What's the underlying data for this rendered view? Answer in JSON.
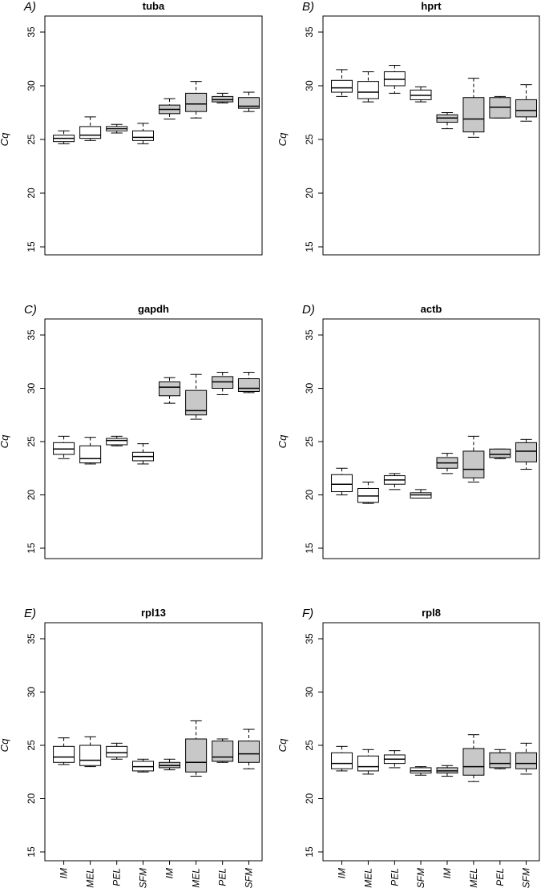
{
  "chart_data": [
    {
      "type": "boxplot",
      "panel_label": "A)",
      "title": "tuba",
      "ylabel": "Cq",
      "ylim": [
        15,
        35
      ],
      "yticks": [
        15,
        20,
        25,
        30,
        35
      ],
      "categories": [
        "IM",
        "MEL",
        "PEL",
        "SFM",
        "IM",
        "MEL",
        "PEL",
        "SFM"
      ],
      "fill": [
        "#ffffff",
        "#ffffff",
        "#ffffff",
        "#ffffff",
        "#c8c8c8",
        "#c8c8c8",
        "#c8c8c8",
        "#c8c8c8"
      ],
      "boxes": [
        {
          "min": 24.6,
          "q1": 24.8,
          "median": 25.1,
          "q3": 25.4,
          "max": 25.8
        },
        {
          "min": 24.9,
          "q1": 25.1,
          "median": 25.4,
          "q3": 26.2,
          "max": 27.1
        },
        {
          "min": 25.6,
          "q1": 25.8,
          "median": 26.0,
          "q3": 26.2,
          "max": 26.4
        },
        {
          "min": 24.6,
          "q1": 24.9,
          "median": 25.2,
          "q3": 25.8,
          "max": 26.5
        },
        {
          "min": 26.9,
          "q1": 27.4,
          "median": 27.8,
          "q3": 28.2,
          "max": 28.8
        },
        {
          "min": 27.0,
          "q1": 27.6,
          "median": 28.3,
          "q3": 29.3,
          "max": 30.4
        },
        {
          "min": 28.4,
          "q1": 28.5,
          "median": 28.7,
          "q3": 29.0,
          "max": 29.3
        },
        {
          "min": 27.6,
          "q1": 27.9,
          "median": 28.1,
          "q3": 28.9,
          "max": 29.4
        }
      ]
    },
    {
      "type": "boxplot",
      "panel_label": "B)",
      "title": "hprt",
      "ylabel": "Cq",
      "ylim": [
        15,
        35
      ],
      "yticks": [
        15,
        20,
        25,
        30,
        35
      ],
      "categories": [
        "IM",
        "MEL",
        "PEL",
        "SFM",
        "IM",
        "MEL",
        "PEL",
        "SFM"
      ],
      "fill": [
        "#ffffff",
        "#ffffff",
        "#ffffff",
        "#ffffff",
        "#c8c8c8",
        "#c8c8c8",
        "#c8c8c8",
        "#c8c8c8"
      ],
      "boxes": [
        {
          "min": 29.0,
          "q1": 29.4,
          "median": 29.8,
          "q3": 30.5,
          "max": 31.5
        },
        {
          "min": 28.5,
          "q1": 28.8,
          "median": 29.4,
          "q3": 30.4,
          "max": 31.3
        },
        {
          "min": 29.3,
          "q1": 30.0,
          "median": 30.6,
          "q3": 31.3,
          "max": 31.9
        },
        {
          "min": 28.5,
          "q1": 28.7,
          "median": 29.1,
          "q3": 29.6,
          "max": 29.9
        },
        {
          "min": 26.0,
          "q1": 26.6,
          "median": 27.0,
          "q3": 27.3,
          "max": 27.5
        },
        {
          "min": 25.2,
          "q1": 25.7,
          "median": 26.9,
          "q3": 28.9,
          "max": 30.7
        },
        {
          "min": 27.0,
          "q1": 27.0,
          "median": 28.0,
          "q3": 28.9,
          "max": 29.0
        },
        {
          "min": 26.7,
          "q1": 27.1,
          "median": 27.7,
          "q3": 28.7,
          "max": 30.1
        }
      ]
    },
    {
      "type": "boxplot",
      "panel_label": "C)",
      "title": "gapdh",
      "ylabel": "Cq",
      "ylim": [
        15,
        35
      ],
      "yticks": [
        15,
        20,
        25,
        30,
        35
      ],
      "categories": [
        "IM",
        "MEL",
        "PEL",
        "SFM",
        "IM",
        "MEL",
        "PEL",
        "SFM"
      ],
      "fill": [
        "#ffffff",
        "#ffffff",
        "#ffffff",
        "#ffffff",
        "#c8c8c8",
        "#c8c8c8",
        "#c8c8c8",
        "#c8c8c8"
      ],
      "boxes": [
        {
          "min": 23.4,
          "q1": 23.8,
          "median": 24.3,
          "q3": 24.9,
          "max": 25.5
        },
        {
          "min": 22.9,
          "q1": 23.0,
          "median": 23.4,
          "q3": 24.6,
          "max": 25.4
        },
        {
          "min": 24.6,
          "q1": 24.7,
          "median": 25.1,
          "q3": 25.3,
          "max": 25.5
        },
        {
          "min": 22.9,
          "q1": 23.2,
          "median": 23.6,
          "q3": 24.0,
          "max": 24.8
        },
        {
          "min": 28.6,
          "q1": 29.3,
          "median": 30.1,
          "q3": 30.6,
          "max": 31.0
        },
        {
          "min": 27.1,
          "q1": 27.5,
          "median": 27.9,
          "q3": 29.8,
          "max": 31.3
        },
        {
          "min": 29.4,
          "q1": 30.0,
          "median": 30.6,
          "q3": 31.1,
          "max": 31.5
        },
        {
          "min": 29.6,
          "q1": 29.7,
          "median": 30.0,
          "q3": 30.9,
          "max": 31.5
        }
      ]
    },
    {
      "type": "boxplot",
      "panel_label": "D)",
      "title": "actb",
      "ylabel": "Cq",
      "ylim": [
        15,
        35
      ],
      "yticks": [
        15,
        20,
        25,
        30,
        35
      ],
      "categories": [
        "IM",
        "MEL",
        "PEL",
        "SFM",
        "IM",
        "MEL",
        "PEL",
        "SFM"
      ],
      "fill": [
        "#ffffff",
        "#ffffff",
        "#ffffff",
        "#ffffff",
        "#c8c8c8",
        "#c8c8c8",
        "#c8c8c8",
        "#c8c8c8"
      ],
      "boxes": [
        {
          "min": 20.0,
          "q1": 20.3,
          "median": 21.0,
          "q3": 21.9,
          "max": 22.5
        },
        {
          "min": 19.2,
          "q1": 19.3,
          "median": 19.9,
          "q3": 20.6,
          "max": 21.2
        },
        {
          "min": 20.5,
          "q1": 21.0,
          "median": 21.4,
          "q3": 21.8,
          "max": 22.0
        },
        {
          "min": 19.7,
          "q1": 19.7,
          "median": 20.0,
          "q3": 20.2,
          "max": 20.5
        },
        {
          "min": 22.0,
          "q1": 22.5,
          "median": 23.0,
          "q3": 23.5,
          "max": 23.9
        },
        {
          "min": 21.2,
          "q1": 21.6,
          "median": 22.4,
          "q3": 24.1,
          "max": 25.5
        },
        {
          "min": 23.4,
          "q1": 23.5,
          "median": 23.8,
          "q3": 24.3,
          "max": 24.3
        },
        {
          "min": 22.4,
          "q1": 23.1,
          "median": 24.1,
          "q3": 24.9,
          "max": 25.2
        }
      ]
    },
    {
      "type": "boxplot",
      "panel_label": "E)",
      "title": "rpl13",
      "ylabel": "Cq",
      "ylim": [
        15,
        35
      ],
      "yticks": [
        15,
        20,
        25,
        30,
        35
      ],
      "categories": [
        "IM",
        "MEL",
        "PEL",
        "SFM",
        "IM",
        "MEL",
        "PEL",
        "SFM"
      ],
      "fill": [
        "#ffffff",
        "#ffffff",
        "#ffffff",
        "#ffffff",
        "#c8c8c8",
        "#c8c8c8",
        "#c8c8c8",
        "#c8c8c8"
      ],
      "boxes": [
        {
          "min": 23.2,
          "q1": 23.4,
          "median": 23.9,
          "q3": 24.9,
          "max": 25.7
        },
        {
          "min": 23.0,
          "q1": 23.1,
          "median": 23.6,
          "q3": 25.0,
          "max": 25.8
        },
        {
          "min": 23.7,
          "q1": 23.9,
          "median": 24.3,
          "q3": 24.9,
          "max": 25.2
        },
        {
          "min": 22.5,
          "q1": 22.6,
          "median": 23.0,
          "q3": 23.5,
          "max": 23.7
        },
        {
          "min": 22.7,
          "q1": 22.9,
          "median": 23.1,
          "q3": 23.4,
          "max": 23.7
        },
        {
          "min": 22.1,
          "q1": 22.5,
          "median": 23.4,
          "q3": 25.6,
          "max": 27.3
        },
        {
          "min": 23.4,
          "q1": 23.5,
          "median": 23.9,
          "q3": 25.4,
          "max": 25.6
        },
        {
          "min": 22.8,
          "q1": 23.4,
          "median": 24.2,
          "q3": 25.4,
          "max": 26.5
        }
      ]
    },
    {
      "type": "boxplot",
      "panel_label": "F)",
      "title": "rpl8",
      "ylabel": "Cq",
      "ylim": [
        15,
        35
      ],
      "yticks": [
        15,
        20,
        25,
        30,
        35
      ],
      "categories": [
        "IM",
        "MEL",
        "PEL",
        "SFM",
        "IM",
        "MEL",
        "PEL",
        "SFM"
      ],
      "fill": [
        "#ffffff",
        "#ffffff",
        "#ffffff",
        "#ffffff",
        "#c8c8c8",
        "#c8c8c8",
        "#c8c8c8",
        "#c8c8c8"
      ],
      "boxes": [
        {
          "min": 22.6,
          "q1": 22.8,
          "median": 23.3,
          "q3": 24.3,
          "max": 24.9
        },
        {
          "min": 22.3,
          "q1": 22.6,
          "median": 23.0,
          "q3": 24.0,
          "max": 24.6
        },
        {
          "min": 22.9,
          "q1": 23.3,
          "median": 23.7,
          "q3": 24.1,
          "max": 24.5
        },
        {
          "min": 22.2,
          "q1": 22.4,
          "median": 22.6,
          "q3": 22.9,
          "max": 23.0
        },
        {
          "min": 22.1,
          "q1": 22.4,
          "median": 22.6,
          "q3": 22.9,
          "max": 23.1
        },
        {
          "min": 21.6,
          "q1": 22.2,
          "median": 23.0,
          "q3": 24.7,
          "max": 26.0
        },
        {
          "min": 22.8,
          "q1": 22.9,
          "median": 23.3,
          "q3": 24.3,
          "max": 24.6
        },
        {
          "min": 22.3,
          "q1": 22.8,
          "median": 23.3,
          "q3": 24.3,
          "max": 25.2
        }
      ]
    }
  ]
}
